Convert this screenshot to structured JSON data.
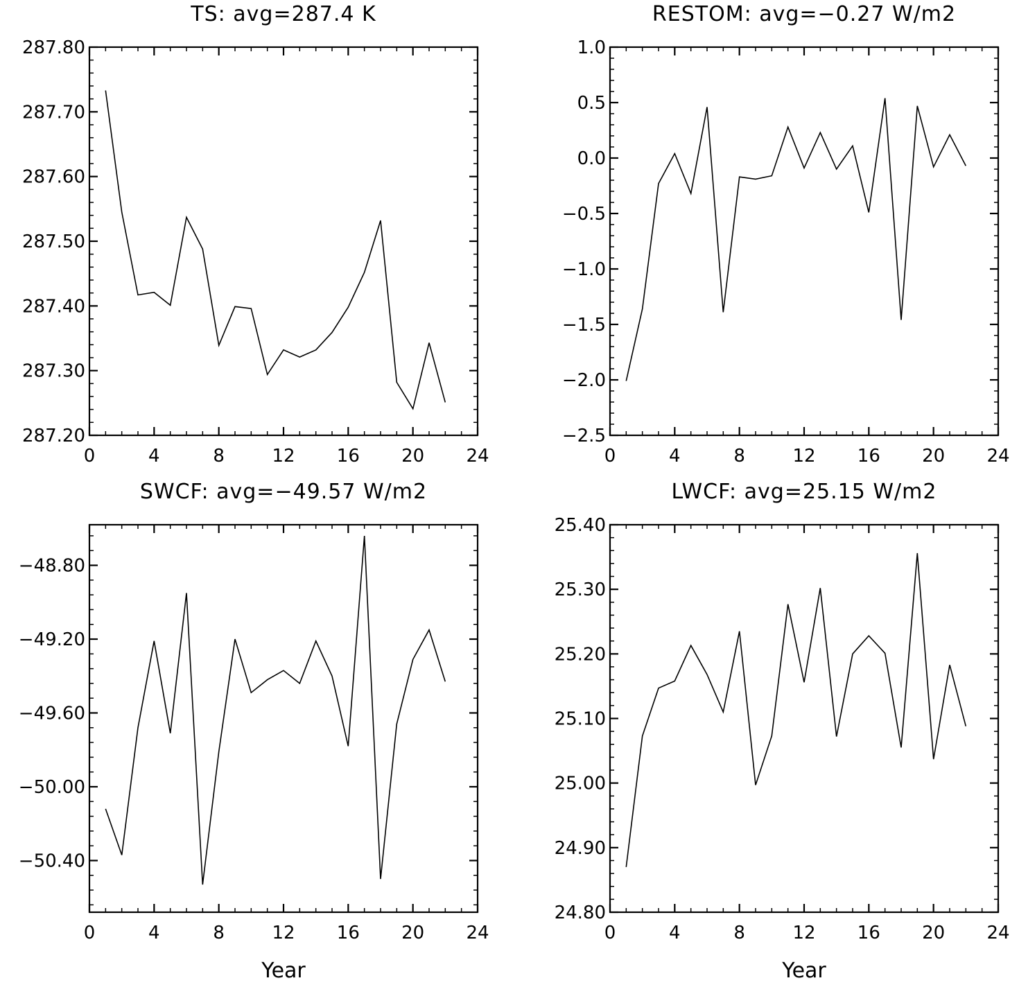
{
  "figure": {
    "line_color": "#000000",
    "background": "#ffffff"
  },
  "chart_data": [
    {
      "type": "line",
      "title": "TS: avg=287.4 K",
      "xlabel": "",
      "ylabel": "",
      "xlim": [
        0,
        24
      ],
      "ylim": [
        287.2,
        287.8
      ],
      "xticks": [
        0,
        4,
        8,
        12,
        16,
        20,
        24
      ],
      "xtick_labels": [
        "0",
        "4",
        "8",
        "12",
        "16",
        "20",
        "24"
      ],
      "yticks": [
        287.2,
        287.3,
        287.4,
        287.5,
        287.6,
        287.7,
        287.8
      ],
      "ytick_labels": [
        "287.20",
        "287.30",
        "287.40",
        "287.50",
        "287.60",
        "287.70",
        "287.80"
      ],
      "yminor_step": 0.02,
      "grid": false,
      "x": [
        1,
        2,
        3,
        4,
        5,
        6,
        7,
        8,
        9,
        10,
        11,
        12,
        13,
        14,
        15,
        16,
        17,
        18,
        19,
        20,
        21,
        22
      ],
      "y": [
        287.733,
        287.545,
        287.417,
        287.421,
        287.401,
        287.537,
        287.488,
        287.339,
        287.399,
        287.396,
        287.294,
        287.332,
        287.321,
        287.332,
        287.359,
        287.398,
        287.452,
        287.532,
        287.282,
        287.241,
        287.343,
        287.251
      ]
    },
    {
      "type": "line",
      "title": "RESTOM: avg=−0.27 W/m2",
      "xlabel": "",
      "ylabel": "",
      "xlim": [
        0,
        24
      ],
      "ylim": [
        -2.5,
        1.0
      ],
      "xticks": [
        0,
        4,
        8,
        12,
        16,
        20,
        24
      ],
      "xtick_labels": [
        "0",
        "4",
        "8",
        "12",
        "16",
        "20",
        "24"
      ],
      "yticks": [
        -2.5,
        -2.0,
        -1.5,
        -1.0,
        -0.5,
        0.0,
        0.5,
        1.0
      ],
      "ytick_labels": [
        "−2.5",
        "−2.0",
        "−1.5",
        "−1.0",
        "−0.5",
        "0.0",
        "0.5",
        "1.0"
      ],
      "yminor_step": 0.1,
      "grid": false,
      "x": [
        1,
        2,
        3,
        4,
        5,
        6,
        7,
        8,
        9,
        10,
        11,
        12,
        13,
        14,
        15,
        16,
        17,
        18,
        19,
        20,
        21,
        22
      ],
      "y": [
        -2.01,
        -1.36,
        -0.23,
        0.04,
        -0.32,
        0.46,
        -1.39,
        -0.17,
        -0.19,
        -0.16,
        0.28,
        -0.09,
        0.23,
        -0.1,
        0.11,
        -0.49,
        0.54,
        -1.46,
        0.47,
        -0.08,
        0.21,
        -0.07
      ]
    },
    {
      "type": "line",
      "title": "SWCF: avg=−49.57 W/m2",
      "xlabel": "Year",
      "ylabel": "",
      "xlim": [
        0,
        24
      ],
      "ylim": [
        -50.68,
        -48.58
      ],
      "xticks": [
        0,
        4,
        8,
        12,
        16,
        20,
        24
      ],
      "xtick_labels": [
        "0",
        "4",
        "8",
        "12",
        "16",
        "20",
        "24"
      ],
      "yticks": [
        -50.4,
        -50.0,
        -49.6,
        -49.2,
        -48.8
      ],
      "ytick_labels": [
        "−50.40",
        "−50.00",
        "−49.60",
        "−49.20",
        "−48.80"
      ],
      "yminor_step": 0.08,
      "grid": false,
      "x": [
        1,
        2,
        3,
        4,
        5,
        6,
        7,
        8,
        9,
        10,
        11,
        12,
        13,
        14,
        15,
        16,
        17,
        18,
        19,
        20,
        21,
        22
      ],
      "y": [
        -50.12,
        -50.37,
        -49.68,
        -49.21,
        -49.71,
        -48.95,
        -50.53,
        -49.81,
        -49.2,
        -49.49,
        -49.42,
        -49.37,
        -49.44,
        -49.21,
        -49.4,
        -49.78,
        -48.64,
        -50.5,
        -49.66,
        -49.31,
        -49.15,
        -49.43
      ]
    },
    {
      "type": "line",
      "title": "LWCF: avg=25.15 W/m2",
      "xlabel": "Year",
      "ylabel": "",
      "xlim": [
        0,
        24
      ],
      "ylim": [
        24.8,
        25.4
      ],
      "xticks": [
        0,
        4,
        8,
        12,
        16,
        20,
        24
      ],
      "xtick_labels": [
        "0",
        "4",
        "8",
        "12",
        "16",
        "20",
        "24"
      ],
      "yticks": [
        24.8,
        24.9,
        25.0,
        25.1,
        25.2,
        25.3,
        25.4
      ],
      "ytick_labels": [
        "24.80",
        "24.90",
        "25.00",
        "25.10",
        "25.20",
        "25.30",
        "25.40"
      ],
      "yminor_step": 0.02,
      "grid": false,
      "x": [
        1,
        2,
        3,
        4,
        5,
        6,
        7,
        8,
        9,
        10,
        11,
        12,
        13,
        14,
        15,
        16,
        17,
        18,
        19,
        20,
        21,
        22
      ],
      "y": [
        24.87,
        25.073,
        25.147,
        25.158,
        25.213,
        25.168,
        25.11,
        25.235,
        24.997,
        25.073,
        25.277,
        25.156,
        25.302,
        25.072,
        25.2,
        25.228,
        25.201,
        25.055,
        25.356,
        25.037,
        25.183,
        25.088
      ]
    }
  ]
}
